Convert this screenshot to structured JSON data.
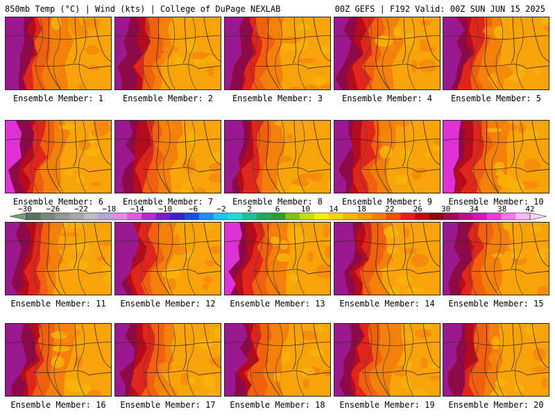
{
  "header": {
    "title_left": "850mb Temp (°C) | Wind (kts) | College of DuPage NEXLAB",
    "title_right": "00Z GEFS | F192 Valid: 00Z SUN JUN 15 2025"
  },
  "panels": [
    {
      "label": "Ensemble Member: 1"
    },
    {
      "label": "Ensemble Member: 2"
    },
    {
      "label": "Ensemble Member: 3"
    },
    {
      "label": "Ensemble Member: 4"
    },
    {
      "label": "Ensemble Member: 5"
    },
    {
      "label": "Ensemble Member: 6"
    },
    {
      "label": "Ensemble Member: 7"
    },
    {
      "label": "Ensemble Member: 8"
    },
    {
      "label": "Ensemble Member: 9"
    },
    {
      "label": "Ensemble Member: 10"
    },
    {
      "label": "Ensemble Member: 11"
    },
    {
      "label": "Ensemble Member: 12"
    },
    {
      "label": "Ensemble Member: 13"
    },
    {
      "label": "Ensemble Member: 14"
    },
    {
      "label": "Ensemble Member: 15"
    },
    {
      "label": "Ensemble Member: 16"
    },
    {
      "label": "Ensemble Member: 17"
    },
    {
      "label": "Ensemble Member: 18"
    },
    {
      "label": "Ensemble Member: 19"
    },
    {
      "label": "Ensemble Member: 20"
    }
  ],
  "colorbar": {
    "tick_labels": [
      "−30",
      "−26",
      "−22",
      "−18",
      "−14",
      "−10",
      "−6",
      "−2",
      "2",
      "6",
      "10",
      "14",
      "18",
      "22",
      "26",
      "30",
      "34",
      "38",
      "42"
    ],
    "colors": [
      "#5e6e5e",
      "#7a8a7a",
      "#969696",
      "#a8a8a8",
      "#bcbcbc",
      "#b4a6d8",
      "#e08ce8",
      "#e45ae4",
      "#b42ccc",
      "#7c1cc8",
      "#3c20c8",
      "#1850dc",
      "#1c8cf0",
      "#1cc4f0",
      "#20dcd4",
      "#1cc49c",
      "#20a860",
      "#2c9c2c",
      "#84c01c",
      "#c8dc10",
      "#f4f00c",
      "#f8d408",
      "#f8b408",
      "#f89c08",
      "#f47c0c",
      "#f0500c",
      "#e81c14",
      "#c00c10",
      "#8c0810",
      "#9c0c54",
      "#b8108c",
      "#d418b8",
      "#ec3cd4",
      "#f878e8",
      "#f8b8f0"
    ]
  }
}
